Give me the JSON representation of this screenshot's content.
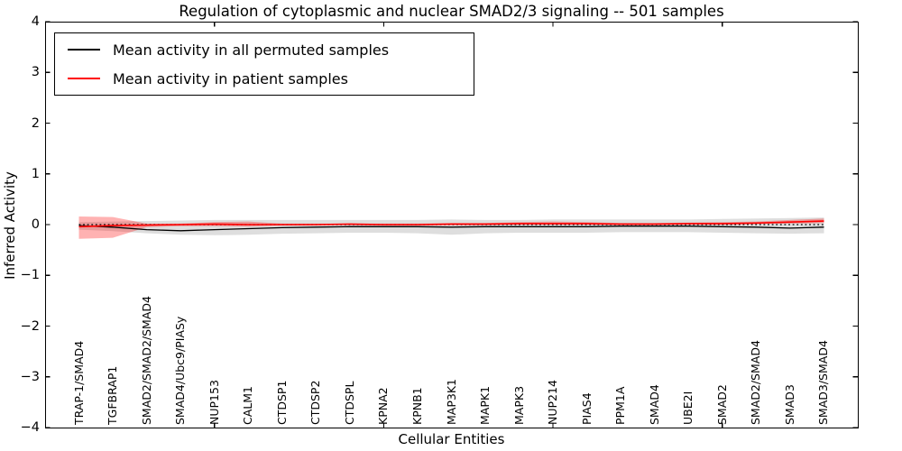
{
  "figure": {
    "title": "Regulation of cytoplasmic and nuclear SMAD2/3 signaling -- 501 samples"
  },
  "legend": {
    "position": "upper left",
    "items": [
      {
        "label": "Mean activity in all permuted samples",
        "color": "#000000"
      },
      {
        "label": "Mean activity in patient samples",
        "color": "#ff0000"
      }
    ]
  },
  "chart_data": {
    "type": "line",
    "title": "Regulation of cytoplasmic and nuclear SMAD2/3 signaling -- 501 samples",
    "xlabel": "Cellular Entities",
    "ylabel": "Inferred Activity",
    "xlim": [
      0,
      24
    ],
    "ylim": [
      -4,
      4
    ],
    "yticks": [
      4,
      3,
      2,
      1,
      0,
      -1,
      -2,
      -3,
      -4
    ],
    "xticks_unlabeled": [
      5,
      10,
      15,
      20
    ],
    "grid": false,
    "legend_position": "upper left",
    "x": [
      1,
      2,
      3,
      4,
      5,
      6,
      7,
      8,
      9,
      10,
      11,
      12,
      13,
      14,
      15,
      16,
      17,
      18,
      19,
      20,
      21,
      22,
      23
    ],
    "categories": [
      "TRAP-1/SMAD4",
      "TGFBRAP1",
      "SMAD2/SMAD2/SMAD4",
      "SMAD4/Ubc9/PIASy",
      "NUP153",
      "CALM1",
      "CTDSP1",
      "CTDSP2",
      "CTDSPL",
      "KPNA2",
      "KPNB1",
      "MAP3K1",
      "MAPK1",
      "MAPK3",
      "NUP214",
      "PIAS4",
      "PPM1A",
      "SMAD4",
      "UBE2I",
      "SMAD2",
      "SMAD2/SMAD4",
      "SMAD3",
      "SMAD3/SMAD4"
    ],
    "reference_line": {
      "y": 0,
      "color": "#000000",
      "style": "dotted"
    },
    "series": [
      {
        "name": "Mean activity in all permuted samples",
        "color": "#000000",
        "line_style": "solid",
        "values": [
          -0.02,
          -0.05,
          -0.1,
          -0.12,
          -0.1,
          -0.08,
          -0.06,
          -0.05,
          -0.04,
          -0.04,
          -0.04,
          -0.05,
          -0.04,
          -0.04,
          -0.04,
          -0.04,
          -0.03,
          -0.03,
          -0.03,
          -0.04,
          -0.05,
          -0.07,
          -0.05
        ],
        "band": {
          "color": "#000000",
          "opacity": 0.13,
          "upper": [
            0.05,
            0.06,
            0.07,
            0.08,
            0.09,
            0.09,
            0.09,
            0.09,
            0.09,
            0.09,
            0.09,
            0.1,
            0.09,
            0.09,
            0.1,
            0.1,
            0.1,
            0.1,
            0.1,
            0.11,
            0.12,
            0.13,
            0.14
          ],
          "lower": [
            -0.1,
            -0.13,
            -0.17,
            -0.2,
            -0.21,
            -0.2,
            -0.18,
            -0.17,
            -0.16,
            -0.16,
            -0.17,
            -0.2,
            -0.17,
            -0.16,
            -0.16,
            -0.16,
            -0.15,
            -0.15,
            -0.15,
            -0.16,
            -0.17,
            -0.18,
            -0.17
          ]
        }
      },
      {
        "name": "Mean activity in patient samples",
        "color": "#ff0000",
        "line_style": "solid",
        "values": [
          -0.04,
          -0.02,
          -0.01,
          0.0,
          0.01,
          0.0,
          0.0,
          0.0,
          0.01,
          0.0,
          0.0,
          0.01,
          0.01,
          0.02,
          0.02,
          0.02,
          0.01,
          0.01,
          0.02,
          0.02,
          0.03,
          0.05,
          0.07
        ],
        "band": {
          "color": "#ff0000",
          "opacity": 0.3,
          "upper": [
            0.16,
            0.15,
            0.02,
            0.02,
            0.05,
            0.06,
            0.02,
            0.02,
            0.02,
            0.02,
            0.02,
            0.03,
            0.03,
            0.05,
            0.06,
            0.05,
            0.03,
            0.03,
            0.04,
            0.05,
            0.06,
            0.09,
            0.12
          ],
          "lower": [
            -0.28,
            -0.26,
            -0.05,
            -0.03,
            -0.03,
            -0.04,
            -0.02,
            -0.02,
            -0.01,
            -0.02,
            -0.02,
            -0.01,
            -0.01,
            0.0,
            0.0,
            0.0,
            -0.01,
            -0.01,
            0.0,
            0.0,
            0.01,
            0.02,
            0.03
          ]
        }
      }
    ]
  }
}
